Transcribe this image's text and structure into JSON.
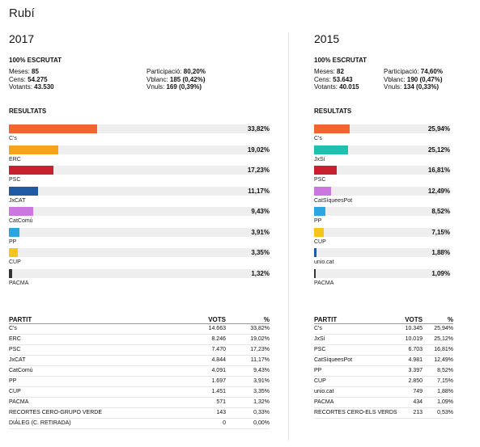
{
  "city": "Rubí",
  "chart_data": [
    {
      "type": "bar",
      "year": "2017",
      "scrutat": "100% ESCRUTAT",
      "stats_left": [
        {
          "label": "Meses: ",
          "value": "85"
        },
        {
          "label": "Cens: ",
          "value": "54.275"
        },
        {
          "label": "Votants: ",
          "value": "43.530"
        }
      ],
      "stats_right": [
        {
          "label": "Participació: ",
          "value": "80,20%"
        },
        {
          "label": "Vblanc: ",
          "value": "185 (0,42%)"
        },
        {
          "label": "Vnuls: ",
          "value": "169 (0,39%)"
        }
      ],
      "results_title": "RESULTATS",
      "xlim": [
        0,
        100
      ],
      "categories": [
        "C's",
        "ERC",
        "PSC",
        "JxCAT",
        "CatComú",
        "PP",
        "CUP",
        "PACMA"
      ],
      "values": [
        33.82,
        19.02,
        17.23,
        11.17,
        9.43,
        3.91,
        3.35,
        1.32
      ],
      "labels": [
        "33,82%",
        "19,02%",
        "17,23%",
        "11,17%",
        "9,43%",
        "3,91%",
        "3,35%",
        "1,32%"
      ],
      "colors": [
        "#f26430",
        "#f7a21b",
        "#c8202f",
        "#1f5aa3",
        "#cc77e0",
        "#2aa6e0",
        "#f5c51c",
        "#333333"
      ],
      "table": {
        "headers": {
          "party": "PARTIT",
          "votes": "VOTS",
          "pct": "%"
        },
        "rows": [
          {
            "party": "C's",
            "votes": "14.663",
            "pct": "33,82%"
          },
          {
            "party": "ERC",
            "votes": "8.246",
            "pct": "19,02%"
          },
          {
            "party": "PSC",
            "votes": "7.470",
            "pct": "17,23%"
          },
          {
            "party": "JxCAT",
            "votes": "4.844",
            "pct": "11,17%"
          },
          {
            "party": "CatComú",
            "votes": "4.091",
            "pct": "9,43%"
          },
          {
            "party": "PP",
            "votes": "1.697",
            "pct": "3,91%"
          },
          {
            "party": "CUP",
            "votes": "1.451",
            "pct": "3,35%"
          },
          {
            "party": "PACMA",
            "votes": "571",
            "pct": "1,32%"
          },
          {
            "party": "RECORTES CERO-GRUPO VERDE",
            "votes": "143",
            "pct": "0,33%"
          },
          {
            "party": "DIÀLEG (C. RETIRADA)",
            "votes": "0",
            "pct": "0,00%"
          }
        ]
      }
    },
    {
      "type": "bar",
      "year": "2015",
      "scrutat": "100% ESCRUTAT",
      "stats_left": [
        {
          "label": "Meses: ",
          "value": "82"
        },
        {
          "label": "Cens: ",
          "value": "53.643"
        },
        {
          "label": "Votants: ",
          "value": "40.015"
        }
      ],
      "stats_right": [
        {
          "label": "Participació: ",
          "value": "74,60%"
        },
        {
          "label": "Vblanc: ",
          "value": "190 (0,47%)"
        },
        {
          "label": "Vnuls: ",
          "value": "134 (0,33%)"
        }
      ],
      "results_title": "RESULTATS",
      "xlim": [
        0,
        100
      ],
      "categories": [
        "C's",
        "JxSí",
        "PSC",
        "CatSíqueesPot",
        "PP",
        "CUP",
        "unio.cat",
        "PACMA"
      ],
      "values": [
        25.94,
        25.12,
        16.81,
        12.49,
        8.52,
        7.15,
        1.88,
        1.09
      ],
      "labels": [
        "25,94%",
        "25,12%",
        "16,81%",
        "12,49%",
        "8,52%",
        "7,15%",
        "1,88%",
        "1,09%"
      ],
      "colors": [
        "#f26430",
        "#1fc0b0",
        "#c8202f",
        "#cc77e0",
        "#2aa6e0",
        "#f5c51c",
        "#1f5aa3",
        "#333333"
      ],
      "table": {
        "headers": {
          "party": "PARTIT",
          "votes": "VOTS",
          "pct": "%"
        },
        "rows": [
          {
            "party": "C's",
            "votes": "10.345",
            "pct": "25,94%"
          },
          {
            "party": "JxSí",
            "votes": "10.019",
            "pct": "25,12%"
          },
          {
            "party": "PSC",
            "votes": "6.703",
            "pct": "16,81%"
          },
          {
            "party": "CatSíqueesPot",
            "votes": "4.981",
            "pct": "12,49%"
          },
          {
            "party": "PP",
            "votes": "3.397",
            "pct": "8,52%"
          },
          {
            "party": "CUP",
            "votes": "2.850",
            "pct": "7,15%"
          },
          {
            "party": "unio.cat",
            "votes": "749",
            "pct": "1,88%"
          },
          {
            "party": "PACMA",
            "votes": "434",
            "pct": "1,09%"
          },
          {
            "party": "RECORTES CERO-ELS VERDS",
            "votes": "213",
            "pct": "0,53%"
          }
        ]
      }
    }
  ]
}
